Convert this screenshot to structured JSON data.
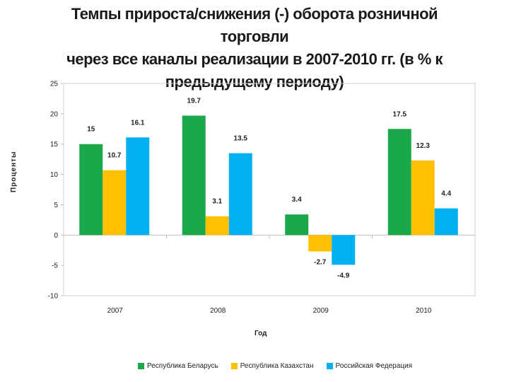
{
  "title": {
    "line1": "Темпы прироста/снижения (-) оборота розничной торговли",
    "line2": "через все каналы реализации в 2007-2010 гг. (в % к",
    "line3": "предыдущему периоду)"
  },
  "chart_data": {
    "type": "bar",
    "title": "Темпы прироста/снижения (-) оборота розничной торговли через все каналы реализации в 2007-2010 гг. (в % к предыдущему периоду)",
    "xlabel": "Год",
    "ylabel": "Проценты",
    "categories": [
      "2007",
      "2008",
      "2009",
      "2010"
    ],
    "ylim": [
      -10,
      25
    ],
    "yticks": [
      25,
      20,
      15,
      10,
      5,
      0,
      -5,
      -10
    ],
    "grid": false,
    "legend_position": "bottom",
    "series": [
      {
        "name": "Республика Беларусь",
        "color": "#1aa84b",
        "values": [
          15,
          19.7,
          3.4,
          17.5
        ],
        "labels": [
          "15",
          "19.7",
          "3.4",
          "17.5"
        ]
      },
      {
        "name": "Республика Казахстан",
        "color": "#ffc000",
        "values": [
          10.7,
          3.1,
          -2.7,
          12.3
        ],
        "labels": [
          "10.7",
          "3.1",
          "-2.7",
          "12.3"
        ]
      },
      {
        "name": "Российская Федерация",
        "color": "#00b0f0",
        "values": [
          16.1,
          13.5,
          -4.9,
          4.4
        ],
        "labels": [
          "16.1",
          "13.5",
          "-4.9",
          "4.4"
        ]
      }
    ]
  }
}
